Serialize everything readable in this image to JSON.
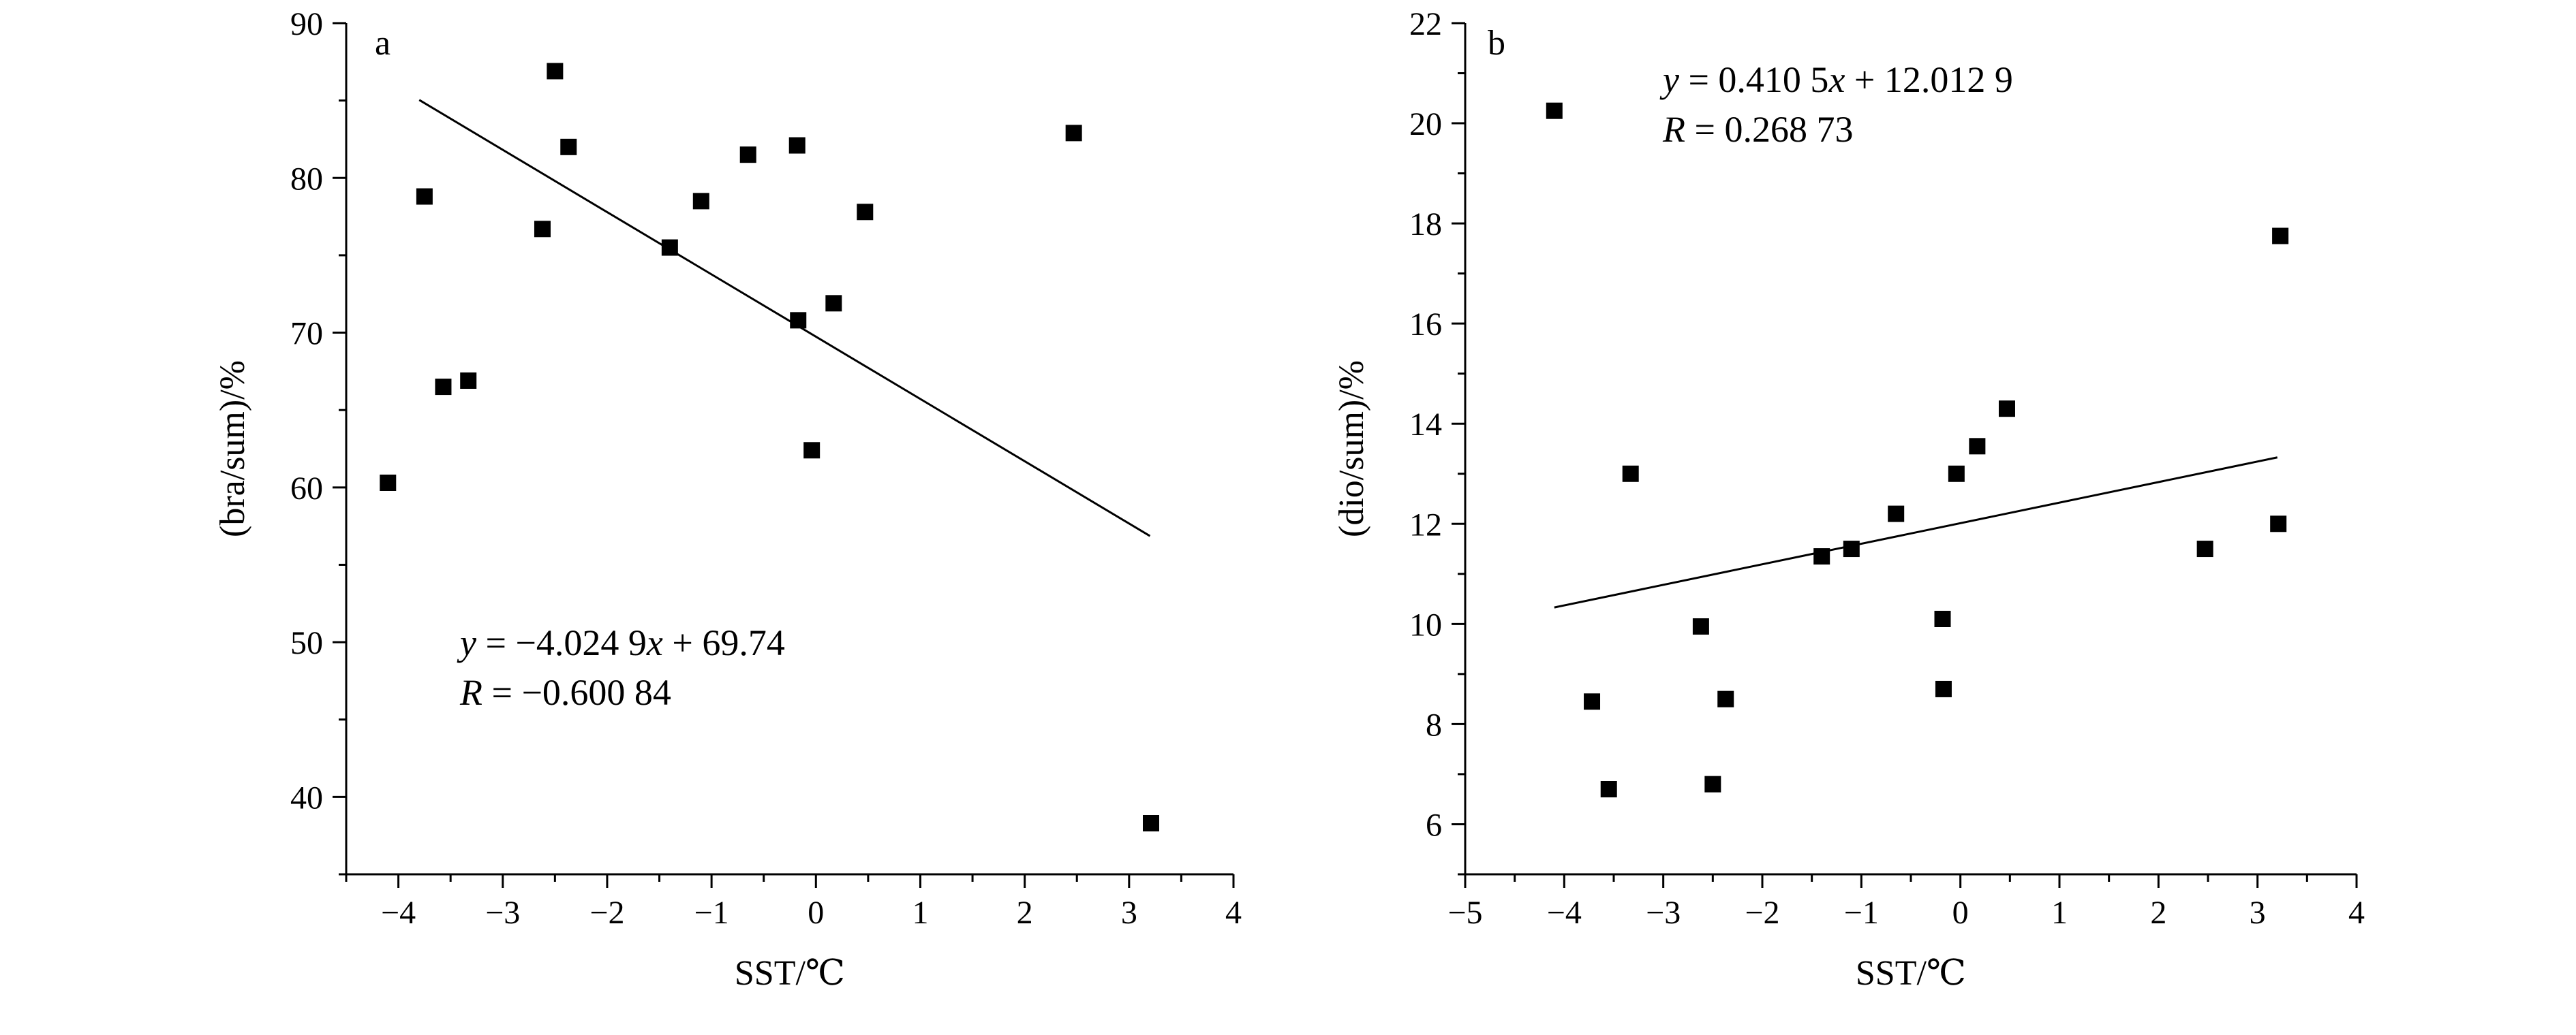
{
  "chart_data": [
    {
      "type": "scatter",
      "panel_label": "a",
      "xlabel": "SST/℃",
      "ylabel": "(bra/sum)/%",
      "xlim": [
        -4.5,
        4
      ],
      "ylim": [
        35,
        90
      ],
      "x_ticks": [
        -4,
        -3,
        -2,
        -1,
        0,
        1,
        2,
        3,
        4
      ],
      "x_tick_labels": [
        "−4",
        "−3",
        "−2",
        "−1",
        "0",
        "1",
        "2",
        "3",
        "4"
      ],
      "y_ticks": [
        40,
        50,
        60,
        70,
        80,
        90
      ],
      "y_tick_labels": [
        "40",
        "50",
        "60",
        "70",
        "80",
        "90"
      ],
      "points": [
        {
          "x": -4.1,
          "y": 60.3
        },
        {
          "x": -3.75,
          "y": 78.8
        },
        {
          "x": -3.57,
          "y": 66.5
        },
        {
          "x": -3.33,
          "y": 66.9
        },
        {
          "x": -2.62,
          "y": 76.7
        },
        {
          "x": -2.5,
          "y": 86.9
        },
        {
          "x": -2.37,
          "y": 82.0
        },
        {
          "x": -1.4,
          "y": 75.5
        },
        {
          "x": -1.1,
          "y": 78.5
        },
        {
          "x": -0.65,
          "y": 81.5
        },
        {
          "x": -0.18,
          "y": 82.1
        },
        {
          "x": -0.17,
          "y": 70.8
        },
        {
          "x": -0.04,
          "y": 62.4
        },
        {
          "x": 0.17,
          "y": 71.9
        },
        {
          "x": 0.47,
          "y": 77.8
        },
        {
          "x": 2.47,
          "y": 82.9
        },
        {
          "x": 3.21,
          "y": 38.3
        }
      ],
      "fit": {
        "slope": -4.0249,
        "intercept": 69.74,
        "x_range": [
          -3.8,
          3.2
        ]
      },
      "equation": {
        "lhs": "y",
        "rhs_a": " = −4.024 9",
        "var": "x",
        "rhs_b": " + 69.74"
      },
      "r_text": {
        "lhs": "R",
        "rhs": " = −0.600 84"
      }
    },
    {
      "type": "scatter",
      "panel_label": "b",
      "xlabel": "SST/℃",
      "ylabel": "(dio/sum)/%",
      "xlim": [
        -5,
        4
      ],
      "ylim": [
        5,
        22
      ],
      "x_ticks": [
        -5,
        -4,
        -3,
        -2,
        -1,
        0,
        1,
        2,
        3,
        4
      ],
      "x_tick_labels": [
        "−5",
        "−4",
        "−3",
        "−2",
        "−1",
        "0",
        "1",
        "2",
        "3",
        "4"
      ],
      "y_ticks": [
        6,
        8,
        10,
        12,
        14,
        16,
        18,
        20,
        22
      ],
      "y_tick_labels": [
        "6",
        "8",
        "10",
        "12",
        "14",
        "16",
        "18",
        "20",
        "22"
      ],
      "points": [
        {
          "x": -4.1,
          "y": 20.25
        },
        {
          "x": -3.72,
          "y": 8.45
        },
        {
          "x": -3.55,
          "y": 6.7
        },
        {
          "x": -3.33,
          "y": 13.0
        },
        {
          "x": -2.62,
          "y": 9.95
        },
        {
          "x": -2.5,
          "y": 6.8
        },
        {
          "x": -2.37,
          "y": 8.5
        },
        {
          "x": -1.4,
          "y": 11.35
        },
        {
          "x": -1.1,
          "y": 11.5
        },
        {
          "x": -0.65,
          "y": 12.2
        },
        {
          "x": -0.18,
          "y": 10.1
        },
        {
          "x": -0.17,
          "y": 8.7
        },
        {
          "x": -0.04,
          "y": 13.0
        },
        {
          "x": 0.17,
          "y": 13.55
        },
        {
          "x": 0.47,
          "y": 14.3
        },
        {
          "x": 2.47,
          "y": 11.5
        },
        {
          "x": 3.21,
          "y": 12.0
        },
        {
          "x": 3.23,
          "y": 17.75
        }
      ],
      "fit": {
        "slope": 0.4105,
        "intercept": 12.0129,
        "x_range": [
          -4.1,
          3.2
        ]
      },
      "equation": {
        "lhs": "y",
        "rhs_a": " = 0.410 5",
        "var": "x",
        "rhs_b": " + 12.012 9"
      },
      "r_text": {
        "lhs": "R",
        "rhs": " = 0.268 73"
      }
    }
  ]
}
